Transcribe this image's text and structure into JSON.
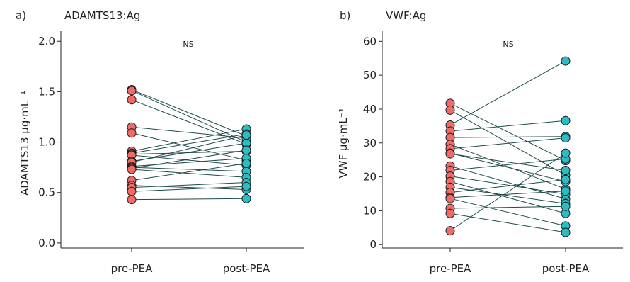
{
  "colors": {
    "pre": "#f06b66",
    "post": "#2bbcc4",
    "line": "#1f4a4a"
  },
  "chart_data": [
    {
      "type": "scatter",
      "panel": "a)",
      "title": "ADAMTS13:Ag",
      "xlabel": "",
      "ylabel": "ADAMTS13 µg·mL⁻¹",
      "categories": [
        "pre-PEA",
        "post-PEA"
      ],
      "ylim": [
        -0.05,
        2.1
      ],
      "yticks": [
        "0.0",
        "0.5",
        "1.0",
        "1.5",
        "2.0"
      ],
      "annotation": "NS",
      "pairs": [
        [
          1.52,
          1.06
        ],
        [
          1.51,
          1.0
        ],
        [
          1.42,
          0.98
        ],
        [
          1.15,
          1.04
        ],
        [
          1.09,
          0.82
        ],
        [
          0.91,
          1.13
        ],
        [
          0.89,
          1.08
        ],
        [
          0.88,
          0.91
        ],
        [
          0.87,
          0.77
        ],
        [
          0.81,
          0.99
        ],
        [
          0.8,
          1.07
        ],
        [
          0.76,
          0.84
        ],
        [
          0.75,
          0.71
        ],
        [
          0.74,
          0.92
        ],
        [
          0.73,
          0.65
        ],
        [
          0.62,
          0.79
        ],
        [
          0.57,
          0.53
        ],
        [
          0.55,
          0.6
        ],
        [
          0.51,
          0.56
        ],
        [
          0.43,
          0.44
        ]
      ]
    },
    {
      "type": "scatter",
      "panel": "b)",
      "title": "VWF:Ag",
      "xlabel": "",
      "ylabel": "VWF µg·mL⁻¹",
      "categories": [
        "pre-PEA",
        "post-PEA"
      ],
      "ylim": [
        -1,
        63
      ],
      "yticks": [
        "0",
        "10",
        "20",
        "30",
        "40",
        "50",
        "60"
      ],
      "annotation": "NS",
      "pairs": [
        [
          41.7,
          24.8
        ],
        [
          39.7,
          20.5
        ],
        [
          35.3,
          54.2
        ],
        [
          33.5,
          36.6
        ],
        [
          31.6,
          31.9
        ],
        [
          29.6,
          16.4
        ],
        [
          28.3,
          31.5
        ],
        [
          27.0,
          18.6
        ],
        [
          26.8,
          21.9
        ],
        [
          23.2,
          13.5
        ],
        [
          21.9,
          25.3
        ],
        [
          20.2,
          14.9
        ],
        [
          18.6,
          9.2
        ],
        [
          16.9,
          12.1
        ],
        [
          15.4,
          19.2
        ],
        [
          13.9,
          15.8
        ],
        [
          13.6,
          5.5
        ],
        [
          10.7,
          11.3
        ],
        [
          9.2,
          3.6
        ],
        [
          4.1,
          27.0
        ]
      ]
    }
  ]
}
